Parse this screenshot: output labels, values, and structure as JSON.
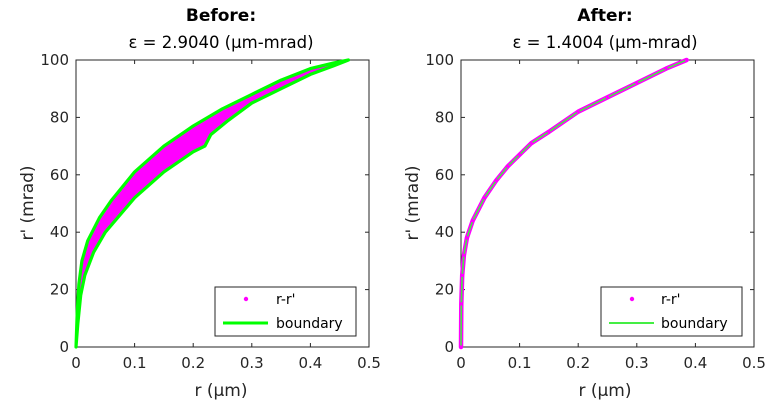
{
  "colors": {
    "scatter": "#ff00ff",
    "boundary": "#00ff00",
    "boundary_after": "#44ee44",
    "axis": "#262626"
  },
  "chart_data": [
    {
      "type": "scatter",
      "title": "Before:",
      "subtitle": "ε = 2.9040 (μm-mrad)",
      "xlabel": "r (μm)",
      "ylabel": "r' (mrad)",
      "xlim": [
        0,
        0.5
      ],
      "ylim": [
        0,
        100
      ],
      "xticks": [
        0,
        0.1,
        0.2,
        0.3,
        0.4,
        0.5
      ],
      "xticklabels": [
        "0",
        "0.1",
        "0.2",
        "0.3",
        "0.4",
        "0.5"
      ],
      "yticks": [
        0,
        20,
        40,
        60,
        80,
        100
      ],
      "yticklabels": [
        "0",
        "20",
        "40",
        "60",
        "80",
        "100"
      ],
      "grid": false,
      "legend_position": "bottom-right",
      "series": [
        {
          "name": "r-r'",
          "kind": "filled-band",
          "upper": [
            [
              0,
              0
            ],
            [
              0.002,
              12
            ],
            [
              0.005,
              22
            ],
            [
              0.01,
              30
            ],
            [
              0.02,
              37
            ],
            [
              0.04,
              45
            ],
            [
              0.06,
              51
            ],
            [
              0.08,
              56
            ],
            [
              0.1,
              61
            ],
            [
              0.15,
              70
            ],
            [
              0.2,
              77
            ],
            [
              0.25,
              83
            ],
            [
              0.3,
              88
            ],
            [
              0.35,
              93
            ],
            [
              0.4,
              97
            ],
            [
              0.44,
              99
            ],
            [
              0.465,
              100
            ]
          ],
          "lower": [
            [
              0,
              0
            ],
            [
              0.003,
              8
            ],
            [
              0.008,
              18
            ],
            [
              0.015,
              25
            ],
            [
              0.03,
              33
            ],
            [
              0.05,
              40
            ],
            [
              0.1,
              52
            ],
            [
              0.15,
              61
            ],
            [
              0.2,
              68
            ],
            [
              0.22,
              70
            ],
            [
              0.23,
              74
            ],
            [
              0.26,
              79
            ],
            [
              0.3,
              85
            ],
            [
              0.35,
              90
            ],
            [
              0.4,
              95
            ],
            [
              0.44,
              98
            ],
            [
              0.465,
              100
            ]
          ]
        },
        {
          "name": "boundary",
          "kind": "line-closed"
        }
      ]
    },
    {
      "type": "scatter",
      "title": "After:",
      "subtitle": "ε = 1.4004 (μm-mrad)",
      "xlabel": "r (μm)",
      "ylabel": "r' (mrad)",
      "xlim": [
        0,
        0.5
      ],
      "ylim": [
        0,
        100
      ],
      "xticks": [
        0,
        0.1,
        0.2,
        0.3,
        0.4,
        0.5
      ],
      "xticklabels": [
        "0",
        "0.1",
        "0.2",
        "0.3",
        "0.4",
        "0.5"
      ],
      "yticks": [
        0,
        20,
        40,
        60,
        80,
        100
      ],
      "yticklabels": [
        "0",
        "20",
        "40",
        "60",
        "80",
        "100"
      ],
      "grid": false,
      "legend_position": "bottom-right",
      "series": [
        {
          "name": "r-r'",
          "kind": "points",
          "values": [
            [
              0,
              0
            ],
            [
              0.0005,
              15
            ],
            [
              0.002,
              25
            ],
            [
              0.005,
              32
            ],
            [
              0.01,
              38
            ],
            [
              0.02,
              44
            ],
            [
              0.04,
              52
            ],
            [
              0.06,
              58
            ],
            [
              0.08,
              63
            ],
            [
              0.1,
              67
            ],
            [
              0.12,
              71
            ],
            [
              0.15,
              75
            ],
            [
              0.2,
              82
            ],
            [
              0.25,
              87
            ],
            [
              0.3,
              92
            ],
            [
              0.35,
              97
            ],
            [
              0.385,
              100
            ]
          ]
        },
        {
          "name": "boundary",
          "kind": "line"
        }
      ]
    }
  ]
}
